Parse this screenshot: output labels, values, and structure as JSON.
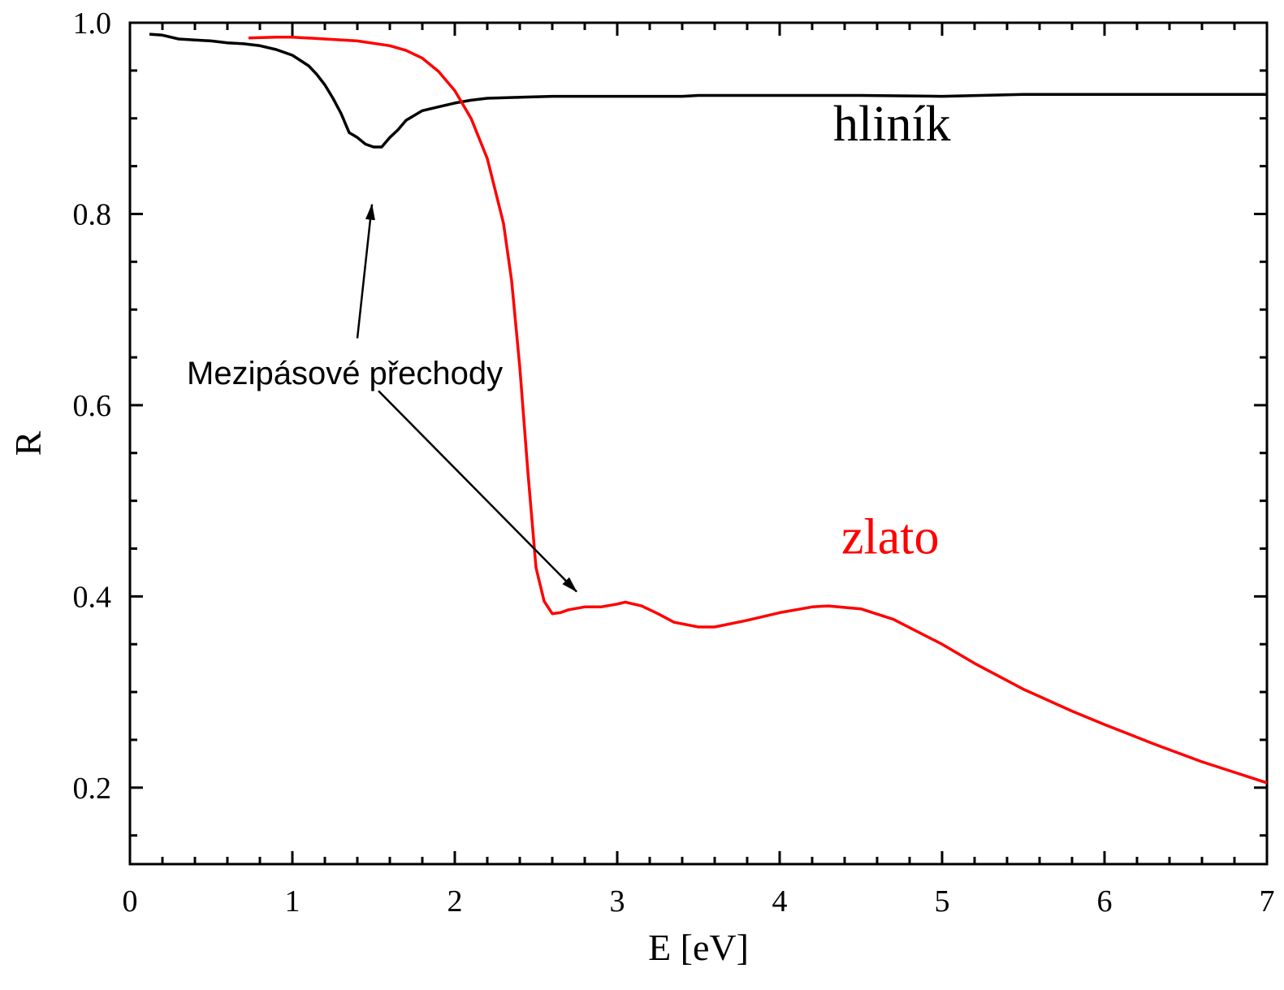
{
  "chart_data": {
    "type": "line",
    "xlabel": "E [eV]",
    "ylabel": "R",
    "xlim": [
      0,
      7
    ],
    "ylim": [
      0.12,
      1.0
    ],
    "xticks": [
      "0",
      "1",
      "2",
      "3",
      "4",
      "5",
      "6",
      "7"
    ],
    "yticks": [
      "0.2",
      "0.4",
      "0.6",
      "0.8",
      "1.0"
    ],
    "xtick_values": [
      0,
      1,
      2,
      3,
      4,
      5,
      6,
      7
    ],
    "ytick_values": [
      0.2,
      0.4,
      0.6,
      0.8,
      1.0
    ],
    "grid": false,
    "series": [
      {
        "name": "hliník",
        "color": "#000000",
        "x": [
          0.12,
          0.2,
          0.3,
          0.4,
          0.5,
          0.6,
          0.7,
          0.8,
          0.9,
          1.0,
          1.1,
          1.15,
          1.2,
          1.25,
          1.3,
          1.35,
          1.4,
          1.45,
          1.5,
          1.55,
          1.6,
          1.65,
          1.7,
          1.8,
          1.9,
          2.0,
          2.1,
          2.2,
          2.4,
          2.6,
          3.0,
          3.4,
          3.5,
          4.0,
          4.5,
          5.0,
          5.5,
          6.0,
          6.5,
          7.0
        ],
        "y": [
          0.988,
          0.987,
          0.983,
          0.982,
          0.981,
          0.979,
          0.978,
          0.976,
          0.972,
          0.966,
          0.955,
          0.946,
          0.935,
          0.921,
          0.905,
          0.885,
          0.88,
          0.873,
          0.87,
          0.87,
          0.88,
          0.888,
          0.898,
          0.908,
          0.912,
          0.916,
          0.919,
          0.921,
          0.922,
          0.923,
          0.923,
          0.923,
          0.924,
          0.924,
          0.924,
          0.923,
          0.925,
          0.925,
          0.925,
          0.925
        ]
      },
      {
        "name": "zlato",
        "color": "#ff0000",
        "x": [
          0.73,
          0.9,
          1.0,
          1.2,
          1.4,
          1.6,
          1.7,
          1.8,
          1.9,
          2.0,
          2.1,
          2.2,
          2.3,
          2.35,
          2.4,
          2.45,
          2.5,
          2.55,
          2.6,
          2.65,
          2.7,
          2.8,
          2.9,
          3.0,
          3.05,
          3.15,
          3.25,
          3.35,
          3.5,
          3.6,
          3.8,
          4.0,
          4.2,
          4.3,
          4.5,
          4.7,
          5.0,
          5.2,
          5.5,
          5.8,
          6.0,
          6.3,
          6.6,
          7.0
        ],
        "y": [
          0.984,
          0.985,
          0.985,
          0.983,
          0.981,
          0.976,
          0.971,
          0.963,
          0.949,
          0.929,
          0.9,
          0.858,
          0.79,
          0.73,
          0.64,
          0.53,
          0.43,
          0.395,
          0.382,
          0.383,
          0.386,
          0.389,
          0.389,
          0.392,
          0.394,
          0.39,
          0.382,
          0.373,
          0.368,
          0.368,
          0.375,
          0.383,
          0.389,
          0.39,
          0.387,
          0.376,
          0.35,
          0.33,
          0.303,
          0.28,
          0.266,
          0.246,
          0.227,
          0.205
        ]
      }
    ],
    "labels": [
      {
        "text": "hliník",
        "x": 4.33,
        "y": 0.877,
        "color": "#000000"
      },
      {
        "text": "zlato",
        "x": 4.38,
        "y": 0.445,
        "color": "#ff0000"
      }
    ],
    "annotations": [
      {
        "text": "Mezipásové přechody",
        "x": 0.35,
        "y": 0.622,
        "arrows": [
          {
            "from": [
              1.4,
              0.67
            ],
            "to": [
              1.49,
              0.81
            ]
          },
          {
            "from": [
              1.53,
              0.615
            ],
            "to": [
              2.75,
              0.405
            ]
          }
        ]
      }
    ]
  }
}
